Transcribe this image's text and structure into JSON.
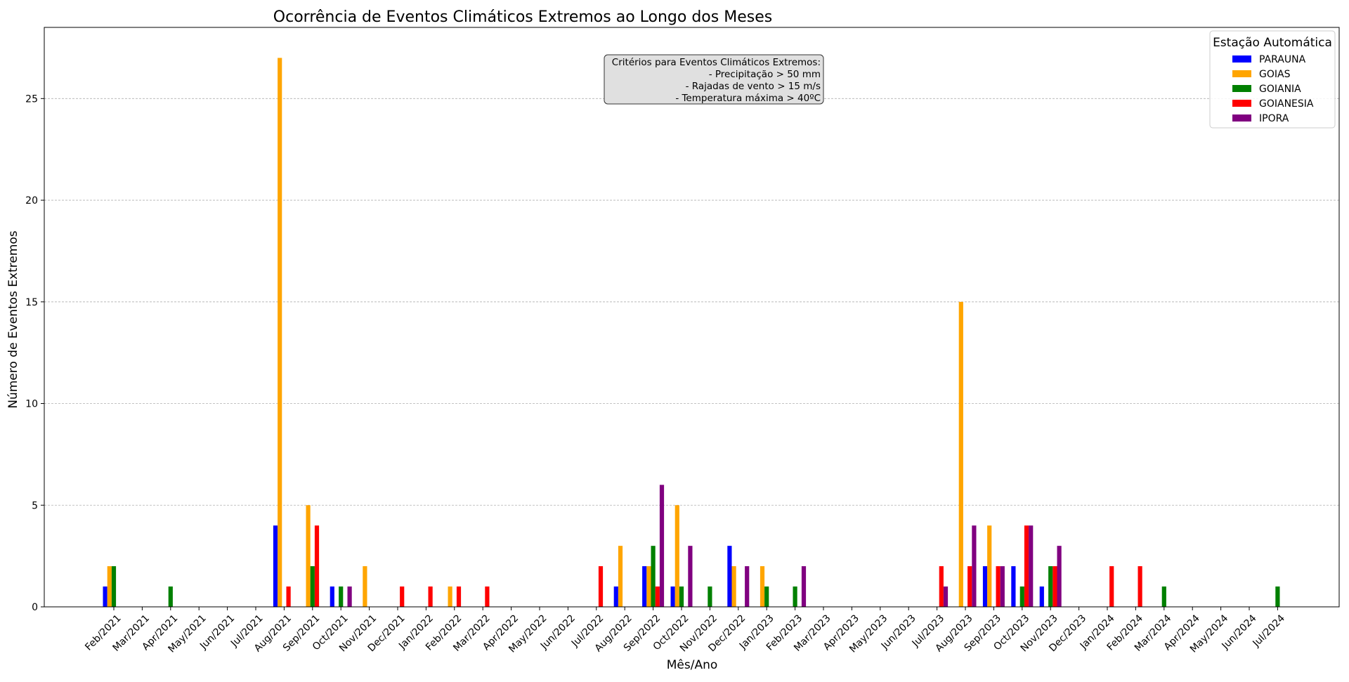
{
  "chart_data": {
    "type": "bar",
    "title": "Ocorrência de Eventos Climáticos Extremos ao Longo dos Meses",
    "xlabel": "Mês/Ano",
    "ylabel": "Número de Eventos Extremos",
    "ylim": [
      0,
      28.5
    ],
    "yticks": [
      0,
      5,
      10,
      15,
      20,
      25
    ],
    "grid": "y-dashed",
    "legend": {
      "title": "Estação Automática",
      "placement": "top-right"
    },
    "annotation": {
      "lines": [
        "Critérios para Eventos Climáticos Extremos:",
        "- Precipitação > 50 mm",
        "- Rajadas de vento > 15 m/s",
        "- Temperatura máxima > 40ºC"
      ],
      "placement": "top-center"
    },
    "categories": [
      "Feb/2021",
      "Mar/2021",
      "Apr/2021",
      "May/2021",
      "Jun/2021",
      "Jul/2021",
      "Aug/2021",
      "Sep/2021",
      "Oct/2021",
      "Nov/2021",
      "Dec/2021",
      "Jan/2022",
      "Feb/2022",
      "Mar/2022",
      "Apr/2022",
      "May/2022",
      "Jun/2022",
      "Jul/2022",
      "Aug/2022",
      "Sep/2022",
      "Oct/2022",
      "Nov/2022",
      "Dec/2022",
      "Jan/2023",
      "Feb/2023",
      "Mar/2023",
      "Apr/2023",
      "May/2023",
      "Jun/2023",
      "Jul/2023",
      "Aug/2023",
      "Sep/2023",
      "Oct/2023",
      "Nov/2023",
      "Dec/2023",
      "Jan/2024",
      "Feb/2024",
      "Mar/2024",
      "Apr/2024",
      "May/2024",
      "Jun/2024",
      "Jul/2024"
    ],
    "series": [
      {
        "name": "PARAUNA",
        "color": "#0000ff",
        "values": [
          1,
          0,
          0,
          0,
          0,
          0,
          4,
          0,
          1,
          0,
          0,
          0,
          0,
          0,
          0,
          0,
          0,
          0,
          1,
          2,
          1,
          0,
          3,
          0,
          0,
          0,
          0,
          0,
          0,
          0,
          0,
          2,
          2,
          1,
          0,
          0,
          0,
          0,
          0,
          0,
          0,
          0
        ]
      },
      {
        "name": "GOIAS",
        "color": "#ffa500",
        "values": [
          2,
          0,
          0,
          0,
          0,
          0,
          27,
          5,
          0,
          2,
          0,
          0,
          1,
          0,
          0,
          0,
          0,
          0,
          3,
          2,
          5,
          0,
          2,
          2,
          0,
          0,
          0,
          0,
          0,
          0,
          15,
          4,
          0,
          0,
          0,
          0,
          0,
          0,
          0,
          0,
          0,
          0
        ]
      },
      {
        "name": "GOIANIA",
        "color": "#008000",
        "values": [
          2,
          0,
          1,
          0,
          0,
          0,
          0,
          2,
          1,
          0,
          0,
          0,
          0,
          0,
          0,
          0,
          0,
          0,
          0,
          3,
          1,
          1,
          0,
          1,
          1,
          0,
          0,
          0,
          0,
          0,
          0,
          0,
          1,
          2,
          0,
          0,
          0,
          1,
          0,
          0,
          0,
          1
        ]
      },
      {
        "name": "GOIANESIA",
        "color": "#ff0000",
        "values": [
          0,
          0,
          0,
          0,
          0,
          0,
          1,
          4,
          0,
          0,
          1,
          1,
          1,
          1,
          0,
          0,
          0,
          2,
          0,
          1,
          0,
          0,
          0,
          0,
          0,
          0,
          0,
          0,
          0,
          2,
          2,
          2,
          4,
          2,
          0,
          2,
          2,
          0,
          0,
          0,
          0,
          0
        ]
      },
      {
        "name": "IPORA",
        "color": "#800080",
        "values": [
          0,
          0,
          0,
          0,
          0,
          0,
          0,
          0,
          1,
          0,
          0,
          0,
          0,
          0,
          0,
          0,
          0,
          0,
          0,
          6,
          3,
          0,
          2,
          0,
          2,
          0,
          0,
          0,
          0,
          1,
          4,
          2,
          4,
          3,
          0,
          0,
          0,
          0,
          0,
          0,
          0,
          0
        ]
      }
    ]
  }
}
